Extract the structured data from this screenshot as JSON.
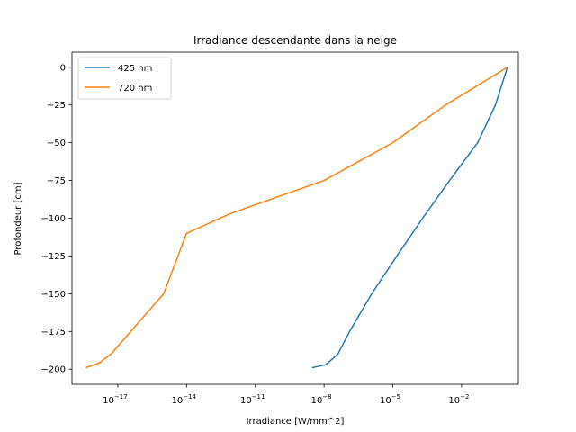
{
  "chart_data": {
    "type": "line",
    "title": "Irradiance descendante dans la neige",
    "xlabel": "Irradiance [W/mm^2]",
    "ylabel": "Profondeur [cm]",
    "xscale": "log",
    "xlim": [
      1e-19,
      3
    ],
    "ylim": [
      -210,
      10
    ],
    "xticks": [
      {
        "base": "10",
        "exp": "−17",
        "value": 1e-17
      },
      {
        "base": "10",
        "exp": "−14",
        "value": 1e-14
      },
      {
        "base": "10",
        "exp": "−11",
        "value": 1e-11
      },
      {
        "base": "10",
        "exp": "−8",
        "value": 1e-08
      },
      {
        "base": "10",
        "exp": "−5",
        "value": 1e-05
      },
      {
        "base": "10",
        "exp": "−2",
        "value": 0.01
      }
    ],
    "yticks": [
      {
        "label": "0",
        "value": 0
      },
      {
        "label": "−25",
        "value": -25
      },
      {
        "label": "−50",
        "value": -50
      },
      {
        "label": "−75",
        "value": -75
      },
      {
        "label": "−100",
        "value": -100
      },
      {
        "label": "−125",
        "value": -125
      },
      {
        "label": "−150",
        "value": -150
      },
      {
        "label": "−175",
        "value": -175
      },
      {
        "label": "−200",
        "value": -200
      }
    ],
    "legend_position": "upper-left",
    "grid": false,
    "series": [
      {
        "name": "425 nm",
        "color": "#1f77b4",
        "points": [
          {
            "x": 1.0,
            "y": 0
          },
          {
            "x": 0.3,
            "y": -25
          },
          {
            "x": 0.05,
            "y": -50
          },
          {
            "x": 0.003,
            "y": -75
          },
          {
            "x": 0.0002,
            "y": -100
          },
          {
            "x": 1.5e-05,
            "y": -125
          },
          {
            "x": 1.2e-06,
            "y": -150
          },
          {
            "x": 1.3e-07,
            "y": -175
          },
          {
            "x": 4e-08,
            "y": -190
          },
          {
            "x": 1.2e-08,
            "y": -197
          },
          {
            "x": 3e-09,
            "y": -199
          }
        ]
      },
      {
        "name": "720 nm",
        "color": "#ff7f0e",
        "points": [
          {
            "x": 1.0,
            "y": 0
          },
          {
            "x": 0.002,
            "y": -25
          },
          {
            "x": 1e-05,
            "y": -50
          },
          {
            "x": 1e-08,
            "y": -75
          },
          {
            "x": 8e-13,
            "y": -97
          },
          {
            "x": 1e-14,
            "y": -110
          },
          {
            "x": 1e-15,
            "y": -150
          },
          {
            "x": 5e-18,
            "y": -190
          },
          {
            "x": 1.5e-18,
            "y": -196
          },
          {
            "x": 4e-19,
            "y": -199
          }
        ]
      }
    ]
  }
}
